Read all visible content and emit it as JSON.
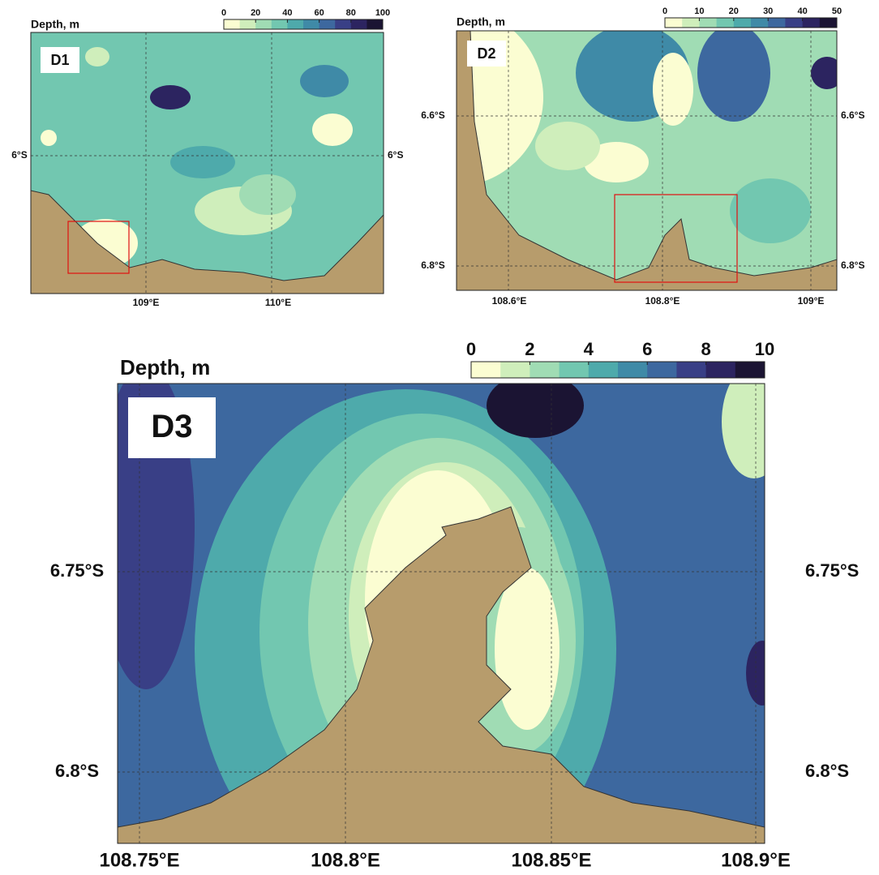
{
  "panels": [
    {
      "label": "D1",
      "colorbar_title": "Depth, m",
      "colorbar_ticks": [
        0,
        20,
        40,
        60,
        80,
        100
      ],
      "lat_labels": [
        "6°S"
      ],
      "lon_labels": [
        "109°E",
        "110°E"
      ]
    },
    {
      "label": "D2",
      "colorbar_title": "Depth, m",
      "colorbar_ticks": [
        0,
        10,
        20,
        30,
        40,
        50
      ],
      "lat_labels": [
        "6.6°S",
        "6.8°S"
      ],
      "lon_labels": [
        "108.6°E",
        "108.8°E",
        "109°E"
      ]
    },
    {
      "label": "D3",
      "colorbar_title": "Depth, m",
      "colorbar_ticks": [
        0,
        2,
        4,
        6,
        8,
        10
      ],
      "lat_labels": [
        "6.75°S",
        "6.8°S"
      ],
      "lon_labels": [
        "108.75°E",
        "108.8°E",
        "108.85°E",
        "108.9°E"
      ]
    }
  ],
  "colorbar_colors": [
    "#fbfdd2",
    "#cfeebb",
    "#a0dcb4",
    "#72c7b0",
    "#4eaaab",
    "#3f8aa7",
    "#3d689f",
    "#393f86",
    "#2c2460",
    "#1b1433"
  ]
}
